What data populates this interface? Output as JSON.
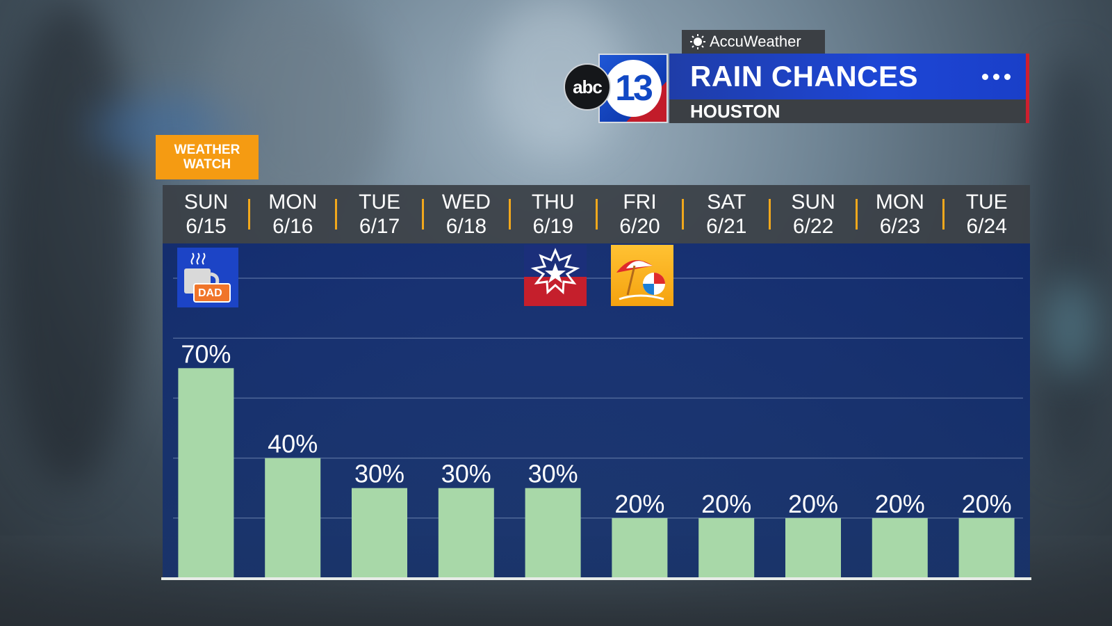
{
  "header": {
    "partner": "AccuWeather",
    "network_abc": "abc",
    "network_number": "13",
    "title": "RAIN CHANCES",
    "location": "HOUSTON"
  },
  "badge": {
    "line1": "WEATHER",
    "line2": "WATCH"
  },
  "icons": {
    "fathers_day_label": "DAD",
    "fathers_day": "coffee-mug-dad-icon",
    "juneteenth": "juneteenth-star-burst-icon",
    "beach": "beach-umbrella-ball-icon"
  },
  "colors": {
    "bar": "#a8d8a8",
    "plot_bg": "#12307a",
    "separator": "#f2a81c",
    "badge": "#f59b12",
    "title_bar": "#1d46d6"
  },
  "chart_data": {
    "type": "bar",
    "categories": [
      {
        "day": "SUN",
        "date": "6/15"
      },
      {
        "day": "MON",
        "date": "6/16"
      },
      {
        "day": "TUE",
        "date": "6/17"
      },
      {
        "day": "WED",
        "date": "6/18"
      },
      {
        "day": "THU",
        "date": "6/19"
      },
      {
        "day": "FRI",
        "date": "6/20"
      },
      {
        "day": "SAT",
        "date": "6/21"
      },
      {
        "day": "SUN",
        "date": "6/22"
      },
      {
        "day": "MON",
        "date": "6/23"
      },
      {
        "day": "TUE",
        "date": "6/24"
      }
    ],
    "values": [
      70,
      40,
      30,
      30,
      30,
      20,
      20,
      20,
      20,
      20
    ],
    "value_suffix": "%",
    "ylim": [
      0,
      100
    ],
    "grid": true
  }
}
